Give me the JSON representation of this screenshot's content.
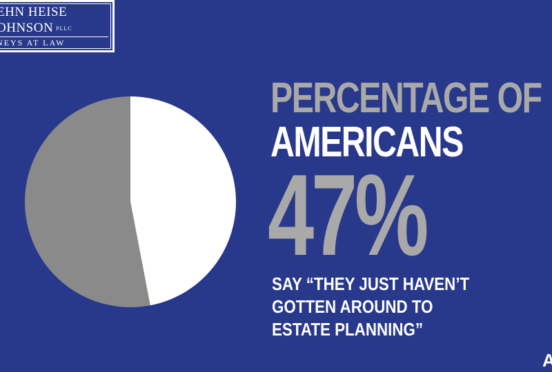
{
  "logo": {
    "line1": "EHN HEISE",
    "line2": "OHNSON",
    "pllc": "PLLC",
    "line3": "NEYS AT LAW"
  },
  "headline": {
    "line1": "PERCENTAGE OF",
    "line2": "AMERICANS",
    "value": "47%"
  },
  "caption": {
    "line1": "SAY “THEY JUST HAVEN’T",
    "line2": "GOTTEN AROUND TO",
    "line3": "ESTATE PLANNING”"
  },
  "corner_text": "A",
  "chart_data": {
    "type": "pie",
    "slices": [
      {
        "value": 47,
        "color": "#ffffff"
      },
      {
        "value": 53,
        "color": "#8a8a8a"
      }
    ]
  },
  "colors": {
    "background": "#28388a",
    "accent_gray": "#a9a9a9"
  }
}
